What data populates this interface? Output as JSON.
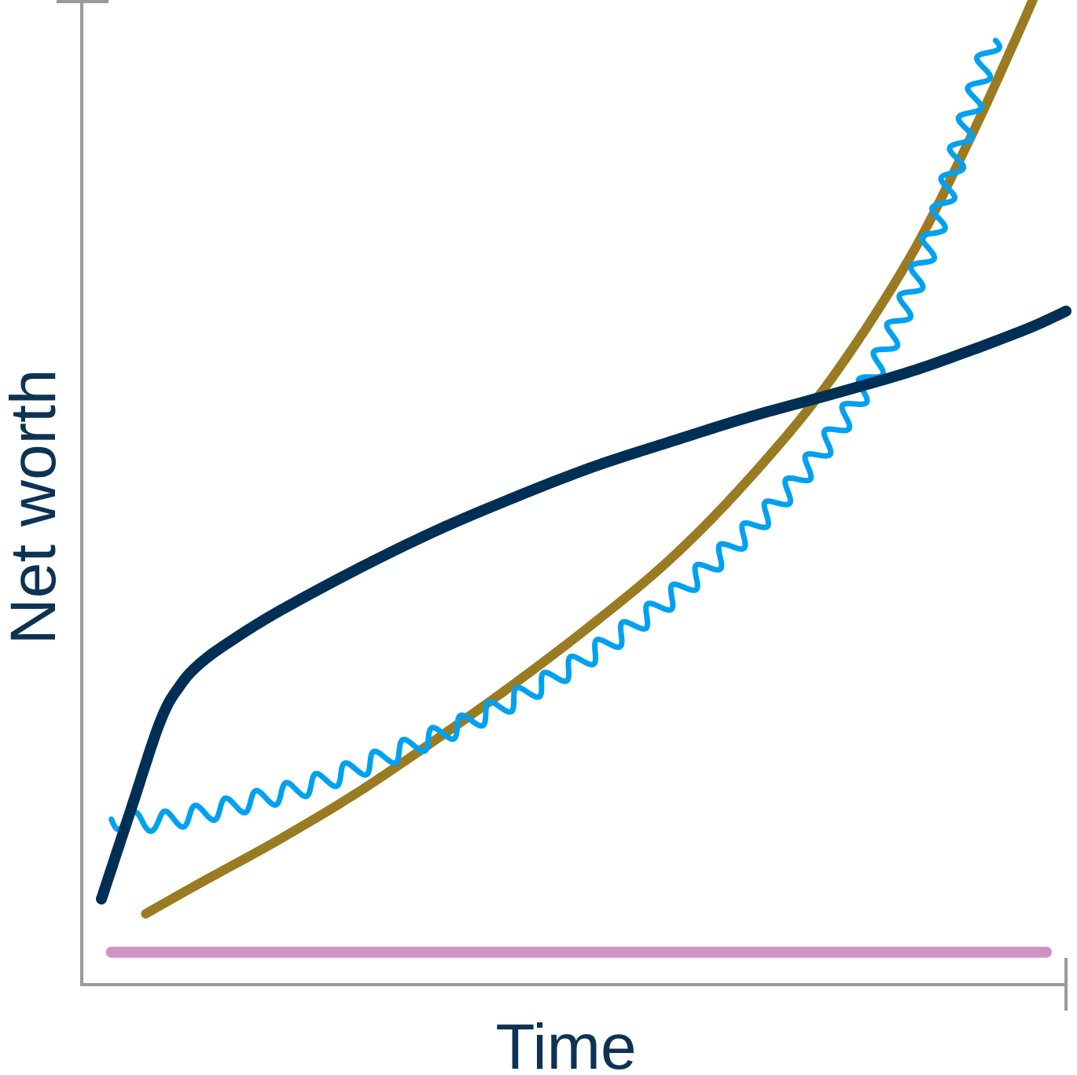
{
  "chart_data": {
    "type": "line",
    "title": "",
    "xlabel": "Time",
    "ylabel": "Net worth",
    "xlim": [
      0,
      100
    ],
    "ylim": [
      0,
      100
    ],
    "grid": false,
    "legend": "none",
    "x_ticks_labeled": false,
    "y_ticks_labeled": false,
    "series": [
      {
        "color": "#ce93c5",
        "style": "solid",
        "x": [
          3,
          98
        ],
        "y": [
          3.3,
          3.3
        ]
      },
      {
        "color": "#9b7b22",
        "style": "solid",
        "x": [
          6.5,
          12,
          20,
          28,
          36,
          44,
          52,
          60,
          68,
          76,
          84,
          90,
          95,
          100
        ],
        "y": [
          7.2,
          10.3,
          14.7,
          19.5,
          24.9,
          30.6,
          36.7,
          43.4,
          51.6,
          61.3,
          73.6,
          85.4,
          96.3,
          107.8
        ]
      },
      {
        "color": "#00a1f1",
        "style": "wavy",
        "x": [
          3,
          8,
          16,
          24,
          32,
          40,
          48,
          56,
          64,
          72,
          80,
          86,
          90,
          92.5
        ],
        "y": [
          16.8,
          16.6,
          18.3,
          20.5,
          23.6,
          27.0,
          31.2,
          36.4,
          42.7,
          50.4,
          61.4,
          74.8,
          87.8,
          96.0
        ]
      },
      {
        "color": "#002f55",
        "style": "solid",
        "x": [
          2,
          5,
          8,
          10,
          12,
          15,
          20,
          28,
          36,
          44,
          52,
          60,
          68,
          76,
          84,
          90,
          94,
          97,
          100
        ],
        "y": [
          8.7,
          17.8,
          26.8,
          30.4,
          32.6,
          34.8,
          37.9,
          42.2,
          46.1,
          49.5,
          52.6,
          55.2,
          57.7,
          59.9,
          62.2,
          64.3,
          65.8,
          67.0,
          68.4
        ]
      }
    ]
  },
  "colors": {
    "axis": "#9a9a9a",
    "title_text": "#0d3354",
    "background": "#ffffff"
  }
}
